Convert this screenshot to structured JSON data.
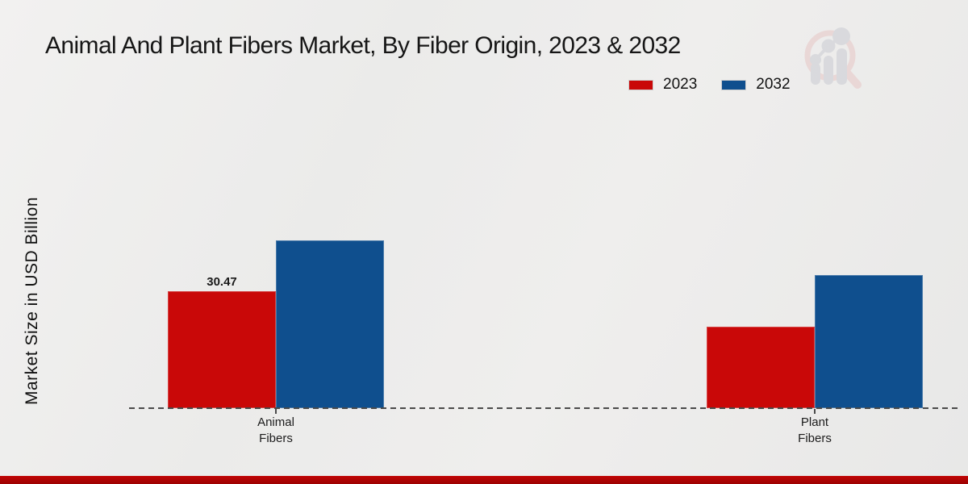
{
  "header": {
    "title": "Animal And Plant Fibers Market, By Fiber Origin, 2023 & 2032"
  },
  "y_axis_label": "Market Size in USD Billion",
  "legend": {
    "items": [
      {
        "label": "2023",
        "color": "#c90808"
      },
      {
        "label": "2032",
        "color": "#0f4f8e"
      }
    ]
  },
  "colors": {
    "bar_2023": "#c90808",
    "bar_2032": "#0f4f8e",
    "footer_strip": "#b30404",
    "baseline": "#4a4a4a",
    "background": "#ececeb"
  },
  "chart_data": {
    "type": "bar",
    "title": "Animal And Plant Fibers Market, By Fiber Origin, 2023 & 2032",
    "ylabel": "Market Size in USD Billion",
    "xlabel": "",
    "grid": false,
    "legend_position": "top-right",
    "baseline_style": "dashed",
    "categories": [
      {
        "line1": "Animal",
        "line2": "Fibers"
      },
      {
        "line1": "Plant",
        "line2": "Fibers"
      }
    ],
    "series": [
      {
        "name": "2023",
        "color": "#c90808",
        "values": [
          30.47,
          21.2
        ]
      },
      {
        "name": "2032",
        "color": "#0f4f8e",
        "values": [
          43.7,
          34.7
        ]
      }
    ],
    "data_labels": [
      {
        "series": "2023",
        "category_index": 0,
        "text": "30.47"
      }
    ]
  }
}
